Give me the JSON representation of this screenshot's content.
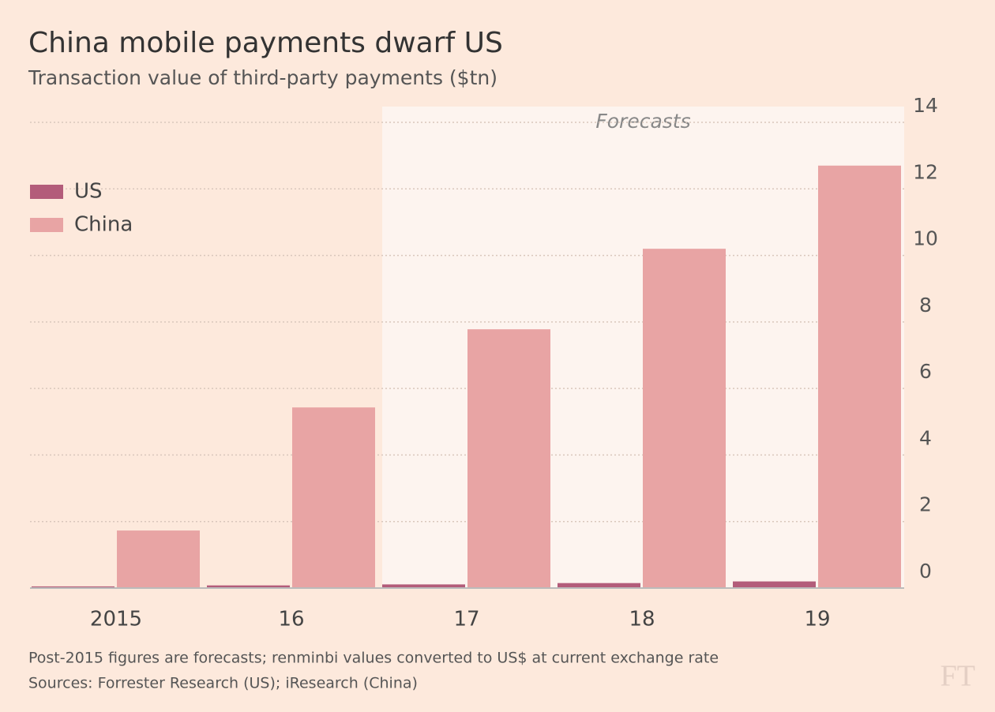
{
  "chart_data": {
    "type": "bar",
    "title": "China mobile payments dwarf US",
    "subtitle": "Transaction value of third-party payments ($tn)",
    "forecast_label": "Forecasts",
    "categories": [
      "2015",
      "16",
      "17",
      "18",
      "19"
    ],
    "series": [
      {
        "name": "US",
        "color": "#b35c7a",
        "values": [
          0.05,
          0.08,
          0.11,
          0.15,
          0.2
        ]
      },
      {
        "name": "China",
        "color": "#e8a4a4",
        "values": [
          1.73,
          5.43,
          7.78,
          10.2,
          12.7
        ]
      }
    ],
    "ylim": [
      0,
      14
    ],
    "yticks": [
      0,
      2,
      4,
      6,
      8,
      10,
      12,
      14
    ],
    "grid": true,
    "legend": "upper left",
    "note": "Post-2015 figures are forecasts; renminbi values converted to US$ at current exchange rate",
    "source": "Sources: Forrester Research (US); iResearch (China)",
    "logo": "FT"
  }
}
